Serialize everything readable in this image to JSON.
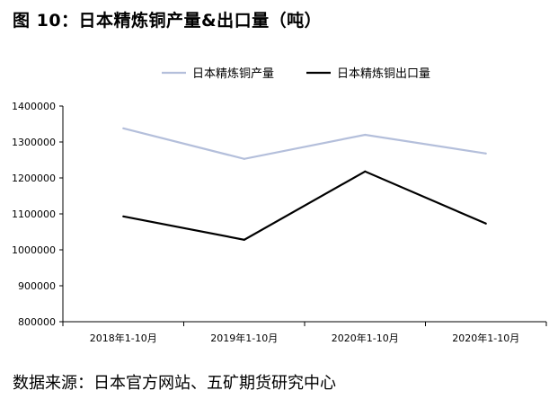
{
  "figure": {
    "title": "图 10：日本精炼铜产量&出口量（吨）",
    "source": "数据来源：日本官方网站、五矿期货研究中心"
  },
  "chart_data": {
    "type": "line",
    "categories": [
      "2018年1-10月",
      "2019年1-10月",
      "2020年1-10月",
      "2020年1-10月"
    ],
    "series": [
      {
        "name": "日本精炼铜产量",
        "color": "#b4bfdb",
        "values": [
          1338000,
          1253000,
          1320000,
          1268000
        ]
      },
      {
        "name": "日本精炼铜出口量",
        "color": "#000000",
        "values": [
          1093000,
          1028000,
          1218000,
          1073000
        ]
      }
    ],
    "yticks": [
      "1400000",
      "1300000",
      "1200000",
      "1100000",
      "1000000",
      "900000",
      "800000"
    ],
    "ylim": [
      800000,
      1400000
    ],
    "grid": false,
    "legend_position": "top-center"
  }
}
